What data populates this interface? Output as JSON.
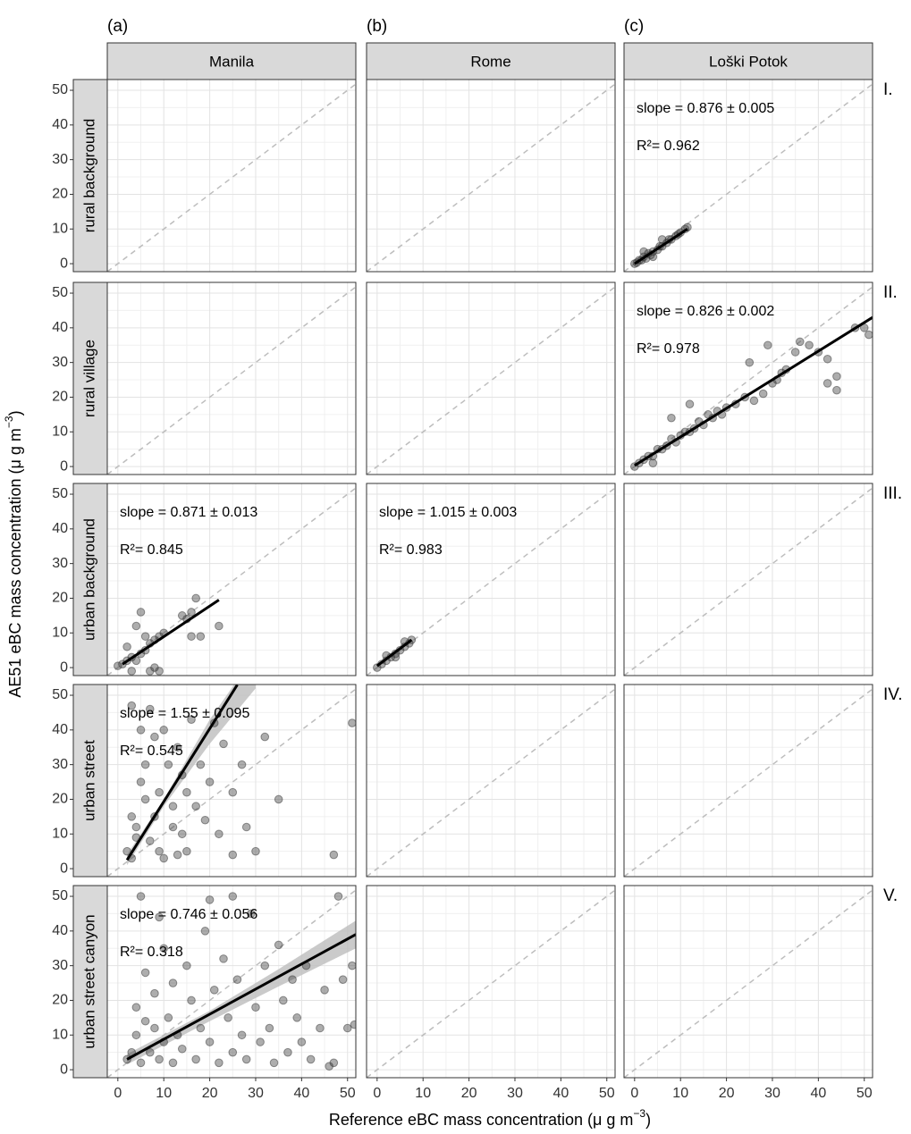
{
  "chart_data": {
    "type": "scatter",
    "x_label": {
      "text": "Reference eBC mass concentration (μ g m",
      "sup": "−3",
      "end": ")"
    },
    "y_label": {
      "text": "AE51 eBC mass concentration (μ g m",
      "sup": "−3",
      "end": ")"
    },
    "xlim": [
      -2.3,
      51.8
    ],
    "ylim": [
      -2.3,
      53.1
    ],
    "xticks": [
      0,
      10,
      20,
      30,
      40,
      50
    ],
    "yticks": [
      0,
      10,
      20,
      30,
      40,
      50
    ],
    "minor_xticks": [
      5,
      15,
      25,
      35,
      45
    ],
    "minor_yticks": [
      5,
      15,
      25,
      35,
      45
    ],
    "grid": true,
    "point_color": "#333333",
    "fit_color": "#000000",
    "band_color": "#bdbdbd",
    "columns": [
      {
        "tag": "(a)",
        "name": "Manila"
      },
      {
        "tag": "(b)",
        "name": "Rome"
      },
      {
        "tag": "(c)",
        "name": "Loški Potok"
      }
    ],
    "rows": [
      {
        "name": "rural background",
        "roman": "I.",
        "cells": [
          null,
          null,
          {
            "slope": "slope = 0.876 ± 0.005",
            "r2": "R²= 0.962",
            "x": [
              0,
              0.5,
              1,
              1.5,
              2,
              2.5,
              3,
              3.5,
              4,
              5,
              5.5,
              6,
              7,
              7.5,
              8,
              9,
              9.5,
              10,
              11,
              11.5,
              2,
              4,
              6
            ],
            "y": [
              0,
              0.3,
              1,
              1,
              2,
              1.5,
              3,
              2.5,
              3.5,
              4,
              5,
              5,
              6,
              7,
              7,
              8,
              8.5,
              9,
              10,
              10.5,
              3.5,
              2,
              7
            ],
            "fit": {
              "x": [
                0,
                11.5
              ],
              "y": [
                0,
                10
              ]
            }
          }
        ]
      },
      {
        "name": "rural village",
        "roman": "II.",
        "cells": [
          null,
          null,
          {
            "slope": "slope = 0.826 ± 0.002",
            "r2": "R²= 0.978",
            "x": [
              0,
              1,
              2,
              3,
              4,
              5,
              6,
              7,
              8,
              9,
              10,
              11,
              12,
              13,
              14,
              15,
              16,
              17,
              18,
              19,
              20,
              22,
              24,
              26,
              28,
              30,
              31,
              32,
              33,
              35,
              36,
              38,
              40,
              42,
              42,
              44,
              44,
              48,
              50,
              51,
              29,
              25,
              8,
              12,
              4
            ],
            "y": [
              0,
              1,
              2,
              3,
              3,
              5,
              5,
              6,
              8,
              7,
              9,
              10,
              10,
              11,
              13,
              12,
              15,
              14,
              16,
              15,
              17,
              18,
              20,
              19,
              21,
              24,
              25,
              27,
              28,
              33,
              36,
              35,
              33,
              31,
              24,
              26,
              22,
              40,
              40,
              38,
              35,
              30,
              14,
              18,
              1
            ],
            "fit": {
              "x": [
                0,
                51.8
              ],
              "y": [
                0.3,
                43
              ]
            }
          }
        ]
      },
      {
        "name": "urban background",
        "roman": "III.",
        "cells": [
          {
            "slope": "slope = 0.871 ± 0.013",
            "r2": "R²= 0.845",
            "x": [
              0,
              1,
              2,
              3,
              4,
              5,
              6,
              7,
              8,
              9,
              10,
              5,
              4,
              6,
              3,
              8,
              9,
              2,
              15,
              16,
              17,
              16,
              18,
              22,
              14,
              7
            ],
            "y": [
              0.5,
              1,
              2,
              3,
              2,
              4,
              5,
              7,
              8,
              9,
              10,
              16,
              12,
              9,
              -1,
              0,
              -1,
              6,
              14,
              16,
              20,
              9,
              9,
              12,
              15,
              -1
            ],
            "fit": {
              "x": [
                1,
                22
              ],
              "y": [
                1,
                19.5
              ]
            }
          },
          {
            "slope": "slope = 1.015 ± 0.003",
            "r2": "R²= 0.983",
            "x": [
              0,
              1,
              2,
              3,
              4,
              5,
              6,
              7,
              7.5,
              2,
              4,
              6
            ],
            "y": [
              0,
              1,
              2,
              3,
              4,
              5,
              6,
              7,
              8,
              3.5,
              3,
              7.5
            ],
            "fit": {
              "x": [
                0,
                7.5
              ],
              "y": [
                0.5,
                8
              ]
            }
          },
          null
        ]
      },
      {
        "name": "urban street",
        "roman": "IV.",
        "cells": [
          {
            "slope": "slope = 1.55 ± 0.095",
            "r2": "R²= 0.545",
            "x": [
              2,
              3,
              3,
              4,
              5,
              6,
              6,
              7,
              8,
              8,
              9,
              10,
              10,
              11,
              12,
              12,
              13,
              14,
              14,
              15,
              15,
              16,
              17,
              18,
              19,
              20,
              21,
              22,
              23,
              25,
              25,
              27,
              28,
              30,
              32,
              35,
              5,
              3,
              4,
              9,
              47,
              51,
              7,
              13
            ],
            "y": [
              5,
              3,
              47,
              12,
              25,
              30,
              20,
              8,
              38,
              15,
              22,
              3,
              40,
              30,
              12,
              18,
              35,
              10,
              27,
              5,
              22,
              43,
              18,
              30,
              14,
              25,
              42,
              10,
              36,
              4,
              22,
              30,
              12,
              5,
              38,
              20,
              40,
              15,
              9,
              5,
              4,
              42,
              46,
              4
            ],
            "fit": {
              "x": [
                2,
                26
              ],
              "y": [
                2.5,
                53
              ]
            },
            "band": {
              "x": [
                2,
                10,
                20,
                30
              ],
              "lower": [
                1,
                18,
                36,
                52
              ],
              "upper": [
                4,
                20,
                43,
                62
              ]
            }
          },
          null,
          null
        ]
      },
      {
        "name": "urban street canyon",
        "roman": "V.",
        "cells": [
          {
            "slope": "slope = 0.746 ± 0.056",
            "r2": "R²= 0.318",
            "x": [
              2,
              3,
              4,
              4,
              5,
              6,
              6,
              7,
              8,
              8,
              9,
              10,
              10,
              11,
              12,
              12,
              13,
              14,
              15,
              16,
              17,
              18,
              19,
              20,
              21,
              22,
              23,
              24,
              25,
              26,
              27,
              28,
              29,
              30,
              31,
              32,
              33,
              34,
              35,
              36,
              37,
              38,
              39,
              40,
              41,
              42,
              44,
              45,
              46,
              47,
              48,
              49,
              50,
              51,
              51.5,
              5,
              9,
              20,
              25
            ],
            "y": [
              3,
              5,
              10,
              18,
              2,
              14,
              28,
              5,
              12,
              22,
              3,
              8,
              35,
              15,
              2,
              25,
              10,
              6,
              30,
              20,
              3,
              12,
              40,
              8,
              23,
              2,
              32,
              15,
              5,
              26,
              10,
              3,
              45,
              18,
              8,
              30,
              12,
              2,
              36,
              20,
              5,
              26,
              15,
              8,
              30,
              3,
              12,
              23,
              1,
              2,
              50,
              26,
              12,
              30,
              13,
              50,
              44,
              49,
              50
            ],
            "fit": {
              "x": [
                2,
                51.8
              ],
              "y": [
                3,
                39
              ]
            },
            "band": {
              "x": [
                2,
                20,
                35,
                51.8
              ],
              "lower": [
                1.5,
                14,
                24,
                35
              ],
              "upper": [
                4.5,
                17,
                29,
                43
              ]
            }
          },
          null,
          null
        ]
      }
    ]
  }
}
